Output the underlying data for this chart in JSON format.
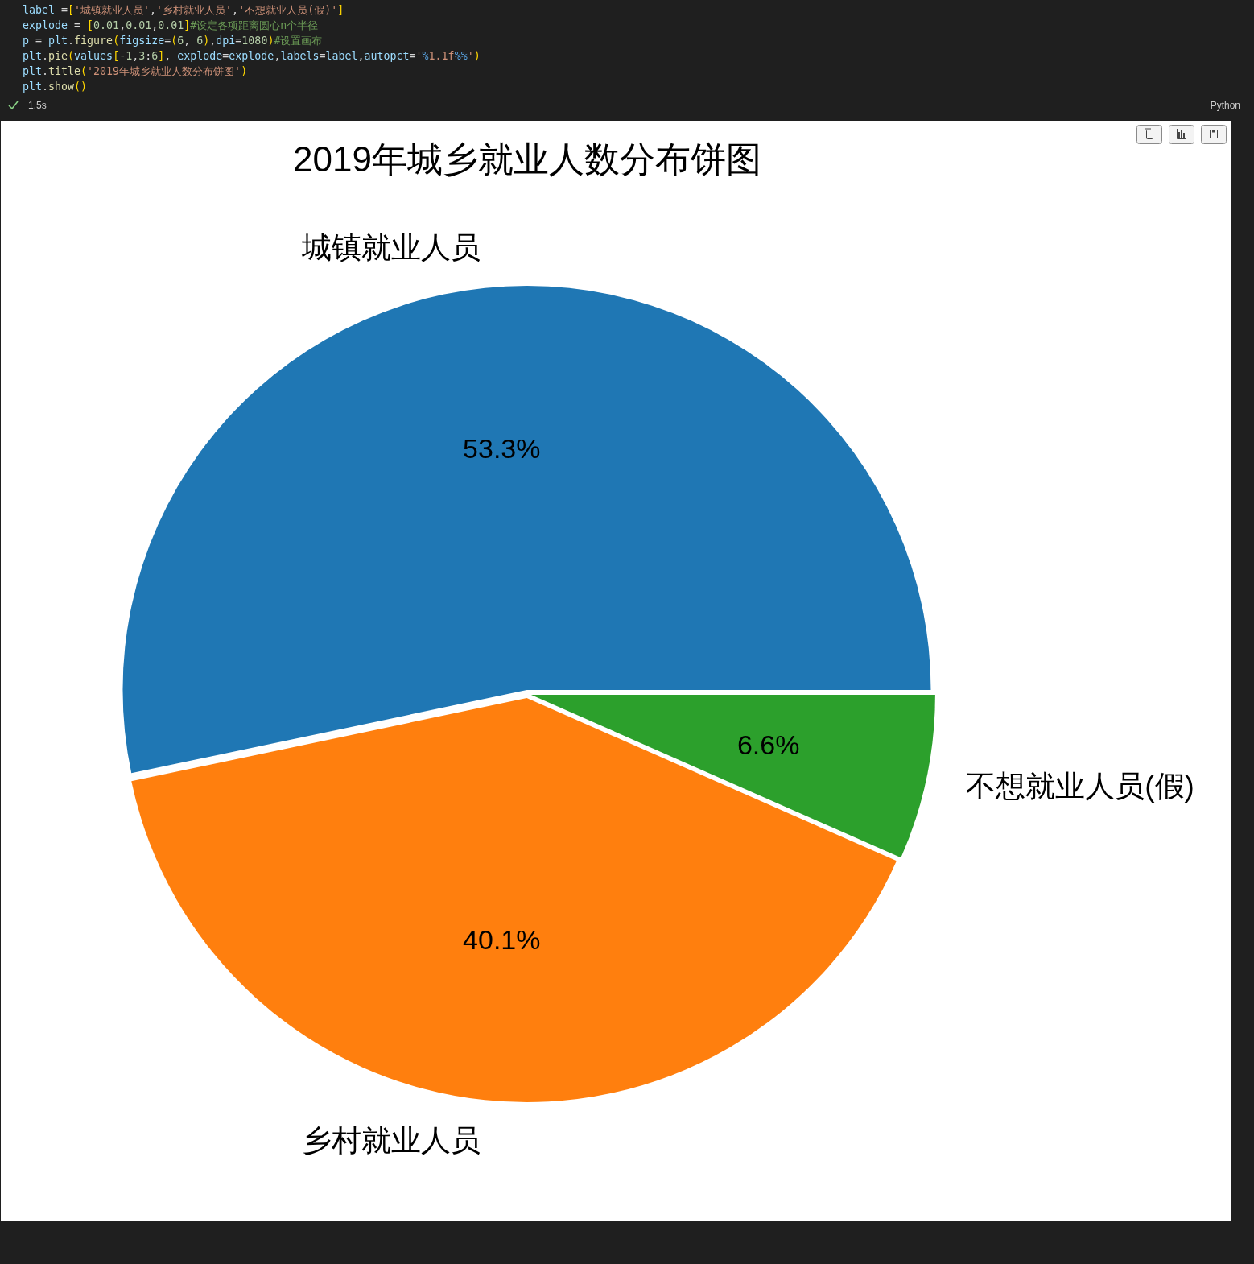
{
  "chart_data": {
    "type": "pie",
    "title": "2019年城乡就业人数分布饼图",
    "categories": [
      "城镇就业人员",
      "乡村就业人员",
      "不想就业人员(假)"
    ],
    "values": [
      53.3,
      40.1,
      6.6
    ],
    "colors": [
      "#1f77b4",
      "#ff7f0e",
      "#2ca02c"
    ],
    "value_labels": [
      "53.3%",
      "40.1%",
      "6.6%"
    ],
    "annotations": [
      "label =['城镇就业人员','乡村就业人员','不想就业人员(假)']",
      "explode = [0.01,0.01,0.01]#设定各项距离圆心n个半径",
      "p = plt.figure(figsize=(6, 6),dpi=1080)#设置画布",
      "plt.pie(values[-1,3:6], explode=explode,labels=label,autopct='%1.1f%%')",
      "plt.title('2019年城乡就业人数分布饼图')",
      "plt.show()",
      "1.5s",
      "Python"
    ]
  }
}
